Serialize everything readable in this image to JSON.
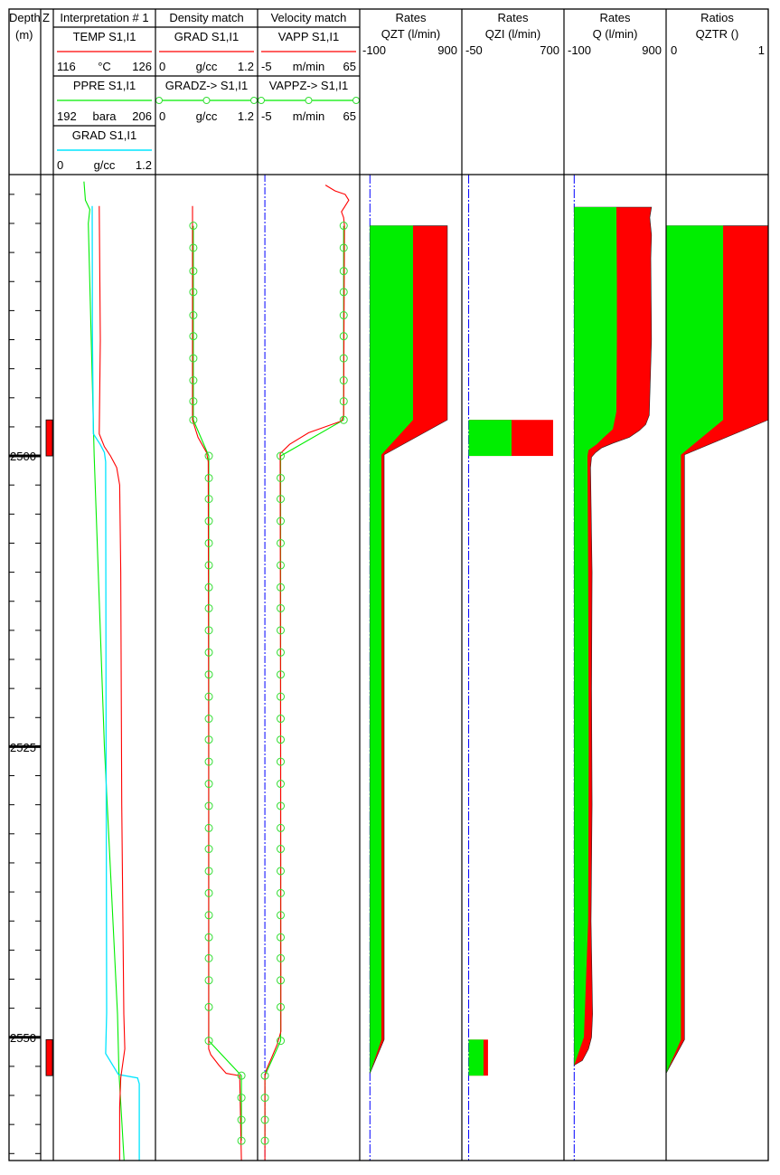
{
  "header": {
    "depth_title": "Depth",
    "depth_unit": "(m)",
    "z_title": "Z",
    "interp_title": "Interpretation # 1",
    "density_title": "Density match",
    "velocity_title": "Velocity match",
    "qzt": {
      "title": "Rates",
      "curve": "QZT (l/min)",
      "min": "-100",
      "max": "900"
    },
    "qzi": {
      "title": "Rates",
      "curve": "QZI (l/min)",
      "min": "-50",
      "max": "700"
    },
    "q": {
      "title": "Rates",
      "curve": "Q (l/min)",
      "min": "-100",
      "max": "900"
    },
    "qztr": {
      "title": "Ratios",
      "curve": "QZTR ()",
      "min": "0",
      "max": "1"
    },
    "temp": {
      "curve": "TEMP  S1,I1",
      "min": "116",
      "unit": "°C",
      "max": "126"
    },
    "ppre": {
      "curve": "PPRE  S1,I1",
      "min": "192",
      "unit": "bara",
      "max": "206"
    },
    "grad_interp": {
      "curve": "GRAD  S1,I1",
      "min": "0",
      "unit": "g/cc",
      "max": "1.2"
    },
    "grad": {
      "curve": "GRAD  S1,I1",
      "min": "0",
      "unit": "g/cc",
      "max": "1.2"
    },
    "gradz": {
      "curve": "GRADZ->  S1,I1",
      "min": "0",
      "unit": "g/cc",
      "max": "1.2"
    },
    "vapp": {
      "curve": "VAPP  S1,I1",
      "min": "-5",
      "unit": "m/min",
      "max": "65"
    },
    "vappz": {
      "curve": "VAPPZ->  S1,I1",
      "min": "-5",
      "unit": "m/min",
      "max": "65"
    }
  },
  "colors": {
    "red": "#ff0000",
    "green": "#00ee00",
    "cyan": "#00e5ff",
    "blue": "#0000ff",
    "marker": "#33dd33"
  },
  "chart_data": {
    "type": "well-log",
    "depth_range": [
      2475.8,
      2560.6
    ],
    "depth_tick_step": 2.5,
    "depth_labels": [
      "2500",
      "2525",
      "2550"
    ],
    "zones": [
      [
        2496.9,
        2500.0
      ],
      [
        2550.2,
        2553.3
      ]
    ],
    "temp": {
      "range": [
        116,
        126
      ],
      "depth": [
        2478.5,
        2490,
        2498.1,
        2499.2,
        2500,
        2501,
        2502.5,
        2510,
        2530,
        2548,
        2551,
        2553.5,
        2556,
        2560.6
      ],
      "values": [
        120.5,
        120.6,
        120.5,
        121.0,
        121.6,
        122.2,
        122.5,
        122.6,
        122.7,
        122.9,
        123.0,
        122.6,
        122.5,
        122.5
      ]
    },
    "ppre": {
      "range": [
        192,
        206
      ],
      "depth": [
        2476.4,
        2478.0,
        2478.8,
        2480,
        2500,
        2525,
        2548,
        2553,
        2560.6
      ],
      "values": [
        196.2,
        196.4,
        197.0,
        196.8,
        197.6,
        199.0,
        200.8,
        201.0,
        201.7
      ]
    },
    "grad_interp": {
      "range": [
        0,
        1.2
      ],
      "depth": [
        2478.5,
        2490,
        2498.1,
        2499.0,
        2499.7,
        2500.5,
        2525,
        2547.9,
        2551.4,
        2553.2,
        2553.5,
        2554,
        2560.6
      ],
      "values": [
        0.457,
        0.46,
        0.47,
        0.55,
        0.6,
        0.615,
        0.62,
        0.627,
        0.615,
        0.765,
        0.99,
        1.01,
        1.01
      ]
    },
    "grad": {
      "range": [
        0,
        1.2
      ],
      "depth": [
        2478.5,
        2496.9,
        2498.4,
        2499.7,
        2500.5,
        2525,
        2550,
        2551.0,
        2551.5,
        2552.4,
        2553.1,
        2553.3,
        2560.6
      ],
      "values": [
        0.435,
        0.435,
        0.5,
        0.6,
        0.62,
        0.625,
        0.625,
        0.625,
        0.65,
        0.745,
        0.83,
        0.99,
        1.01
      ]
    },
    "gradz": {
      "range": [
        0,
        1.2
      ],
      "depth": [
        2480.2,
        2482.1,
        2484.1,
        2485.9,
        2487.9,
        2489.7,
        2491.6,
        2493.5,
        2495.3,
        2496.9,
        2500.0,
        2501.9,
        2503.7,
        2505.6,
        2507.5,
        2509.4,
        2511.3,
        2513.1,
        2515.0,
        2516.9,
        2518.8,
        2520.7,
        2522.6,
        2524.4,
        2526.3,
        2528.2,
        2530.1,
        2532.0,
        2533.8,
        2535.7,
        2537.6,
        2539.5,
        2541.4,
        2543.2,
        2545.1,
        2547.4,
        2550.3,
        2553.3,
        2555.2,
        2557.1,
        2558.9
      ],
      "values": [
        0.445,
        0.445,
        0.445,
        0.445,
        0.445,
        0.445,
        0.445,
        0.445,
        0.445,
        0.445,
        0.627,
        0.627,
        0.627,
        0.627,
        0.627,
        0.627,
        0.627,
        0.627,
        0.627,
        0.627,
        0.627,
        0.627,
        0.627,
        0.627,
        0.627,
        0.627,
        0.627,
        0.627,
        0.627,
        0.627,
        0.627,
        0.627,
        0.627,
        0.627,
        0.627,
        0.627,
        0.627,
        1.01,
        1.01,
        1.01,
        1.01
      ]
    },
    "vapp": {
      "range": [
        -5,
        65
      ],
      "depth": [
        2476.7,
        2477.2,
        2477.5,
        2478.0,
        2478.5,
        2479.0,
        2479.5,
        2480.2,
        2496.5,
        2497.0,
        2498.0,
        2499.0,
        2499.8,
        2500.5,
        2525,
        2549.5,
        2550.6,
        2551.8,
        2552.8,
        2553.3,
        2560.6
      ],
      "values": [
        41.5,
        48,
        55,
        57.5,
        55,
        52.5,
        54,
        54.5,
        54,
        52.5,
        30,
        17,
        10.5,
        10.5,
        10.8,
        11,
        8.5,
        4.5,
        1,
        0,
        0
      ]
    },
    "vappz": {
      "range": [
        -5,
        65
      ],
      "depth": [
        2480.2,
        2482.1,
        2484.1,
        2485.9,
        2487.9,
        2489.7,
        2491.6,
        2493.5,
        2495.3,
        2496.9,
        2500.0,
        2501.9,
        2503.7,
        2505.6,
        2507.5,
        2509.4,
        2511.3,
        2513.1,
        2515.0,
        2516.9,
        2518.8,
        2520.7,
        2522.6,
        2524.4,
        2526.3,
        2528.2,
        2530.1,
        2532.0,
        2533.8,
        2535.7,
        2537.6,
        2539.5,
        2541.4,
        2543.2,
        2545.1,
        2547.4,
        2550.3,
        2553.3,
        2555.2,
        2557.1,
        2558.9
      ],
      "values": [
        54,
        54,
        54,
        54,
        54,
        54,
        54,
        54,
        54,
        54,
        10.8,
        10.8,
        10.8,
        10.8,
        10.8,
        10.8,
        10.8,
        10.8,
        10.8,
        10.8,
        10.8,
        10.8,
        10.8,
        10.8,
        10.8,
        10.8,
        10.8,
        10.8,
        10.8,
        10.8,
        10.8,
        10.8,
        10.8,
        10.8,
        10.8,
        10.8,
        10.8,
        0,
        0,
        0,
        0
      ]
    },
    "qzt": {
      "range": [
        -100,
        900
      ],
      "depth": [
        2480.2,
        2496.9,
        2499.9,
        2550.2,
        2553.1
      ],
      "green": [
        422,
        422,
        112,
        112,
        0
      ],
      "total": [
        758,
        758,
        139,
        139,
        0
      ]
    },
    "qzi": {
      "range": [
        -50,
        700
      ],
      "blocks": [
        {
          "top": 2496.9,
          "bottom": 2500.0,
          "green": 315,
          "total": 620
        },
        {
          "top": 2550.2,
          "bottom": 2553.3,
          "green": 109,
          "total": 142
        }
      ]
    },
    "q": {
      "range": [
        -100,
        900
      ],
      "green_depth": [
        2478.6,
        2485,
        2490,
        2496.2,
        2497.7,
        2498.4,
        2499.0,
        2499.5,
        2500,
        2510,
        2525,
        2540,
        2550,
        2552.4
      ],
      "green": [
        413,
        418,
        418,
        413,
        378,
        290,
        220,
        140,
        130,
        137,
        142,
        137,
        95,
        0
      ],
      "total_depth": [
        2478.6,
        2479.5,
        2481,
        2483,
        2490,
        2495,
        2496.5,
        2497.3,
        2497.8,
        2498.4,
        2498.9,
        2499.3,
        2499.7,
        2500.1,
        2501,
        2510,
        2520,
        2530,
        2540,
        2548,
        2550,
        2551,
        2552,
        2552.4
      ],
      "total": [
        757,
        740,
        757,
        750,
        757,
        740,
        735,
        700,
        640,
        540,
        380,
        270,
        210,
        170,
        160,
        175,
        170,
        175,
        165,
        180,
        170,
        140,
        80,
        0
      ]
    },
    "qztr": {
      "range": [
        0,
        1
      ],
      "depth": [
        2480.2,
        2496.9,
        2499.9,
        2550.2,
        2553.1
      ],
      "green": [
        0.558,
        0.558,
        0.145,
        0.145,
        0
      ],
      "total": [
        1,
        1,
        0.18,
        0.18,
        0
      ]
    }
  }
}
